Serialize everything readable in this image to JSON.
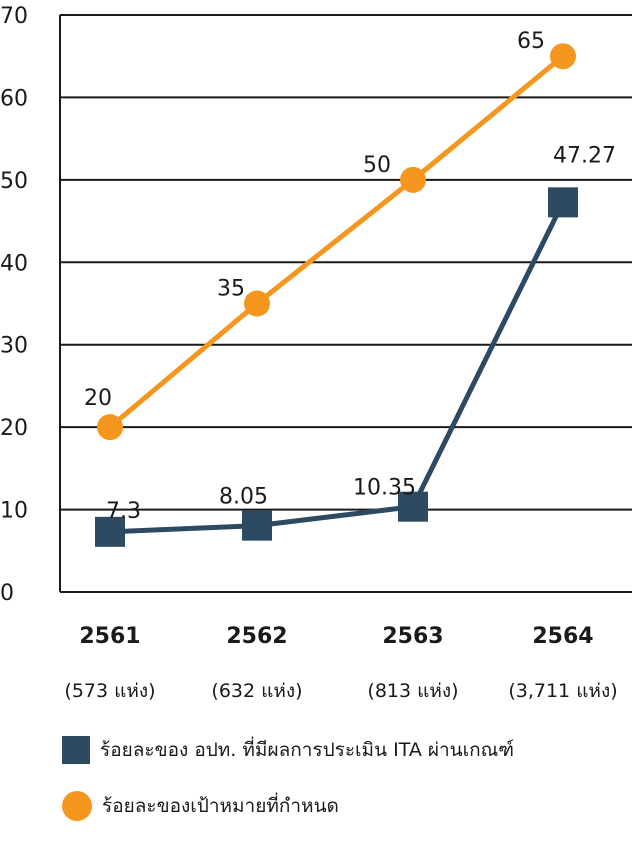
{
  "chart_data": {
    "type": "line",
    "categories": [
      "2561",
      "2562",
      "2563",
      "2564"
    ],
    "category_sublabels": [
      "(573 แห่ง)",
      "(632 แห่ง)",
      "(813 แห่ง)",
      "(3,711 แห่ง)"
    ],
    "y_tick_labels": [
      "70",
      "60",
      "50",
      "40",
      "30",
      "20",
      "10",
      "0"
    ],
    "series": [
      {
        "name": "ร้อยละของเป้าหมายที่กำหนด",
        "values": [
          20,
          35,
          50,
          65
        ],
        "labels": [
          "20",
          "35",
          "50",
          "65"
        ],
        "color": "#f5961e",
        "marker": "circle"
      },
      {
        "name": "ร้อยละของ อปท. ที่มีผลการประเมิน ITA ผ่านเกณฑ์",
        "values": [
          7.3,
          8.05,
          10.35,
          47.27
        ],
        "labels": [
          "7.3",
          "8.05",
          "10.35",
          "47.27"
        ],
        "color": "#2d4a63",
        "marker": "square"
      }
    ],
    "legend": [
      {
        "label": "ร้อยละของ อปท. ที่มีผลการประเมิน ITA ผ่านเกณฑ์",
        "color": "#2d4a63",
        "marker": "square"
      },
      {
        "label": "ร้อยละของเป้าหมายที่กำหนด",
        "color": "#f5961e",
        "marker": "circle"
      }
    ],
    "legend_position": "bottom",
    "grid": true
  }
}
